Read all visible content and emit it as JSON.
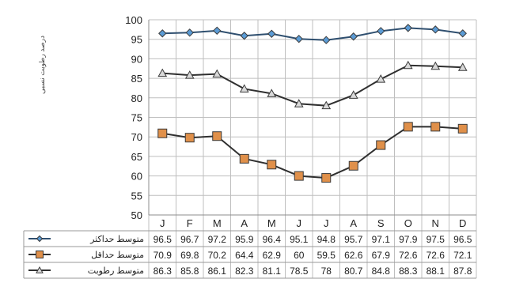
{
  "chart_data": {
    "type": "line",
    "ylabel": "درصد رطوبت نسبی",
    "ylim": [
      50,
      100
    ],
    "yticks": [
      50,
      55,
      60,
      65,
      70,
      75,
      80,
      85,
      90,
      95,
      100
    ],
    "grid": true,
    "categories": [
      "J",
      "F",
      "M",
      "A",
      "M",
      "J",
      "J",
      "A",
      "S",
      "O",
      "N",
      "D"
    ],
    "series": [
      {
        "name": "متوسط حداکثر",
        "values": [
          96.5,
          96.7,
          97.2,
          95.9,
          96.4,
          95.1,
          94.8,
          95.7,
          97.1,
          97.9,
          97.5,
          96.5
        ],
        "labels": [
          "96.5",
          "96.7",
          "97.2",
          "95.9",
          "96.4",
          "95.1",
          "94.8",
          "95.7",
          "97.1",
          "97.9",
          "97.5",
          "96.5"
        ],
        "marker": "diamond",
        "marker_fill": "#5b9bd5",
        "line_color": "#2f4f6f"
      },
      {
        "name": "متوسط حداقل",
        "values": [
          70.9,
          69.8,
          70.2,
          64.4,
          62.9,
          60,
          59.5,
          62.6,
          67.9,
          72.6,
          72.6,
          72.1
        ],
        "labels": [
          "70.9",
          "69.8",
          "70.2",
          "64.4",
          "62.9",
          "60",
          "59.5",
          "62.6",
          "67.9",
          "72.6",
          "72.6",
          "72.1"
        ],
        "marker": "square",
        "marker_fill": "#e0904a",
        "line_color": "#2f2f2f"
      },
      {
        "name": "متوسط رطوبت",
        "values": [
          86.3,
          85.8,
          86.1,
          82.3,
          81.1,
          78.5,
          78,
          80.7,
          84.8,
          88.3,
          88.1,
          87.8
        ],
        "labels": [
          "86.3",
          "85.8",
          "86.1",
          "82.3",
          "81.1",
          "78.5",
          "78",
          "80.7",
          "84.8",
          "88.3",
          "88.1",
          "87.8"
        ],
        "marker": "triangle",
        "marker_fill": "#d9d9d9",
        "line_color": "#2f2f2f"
      }
    ]
  }
}
